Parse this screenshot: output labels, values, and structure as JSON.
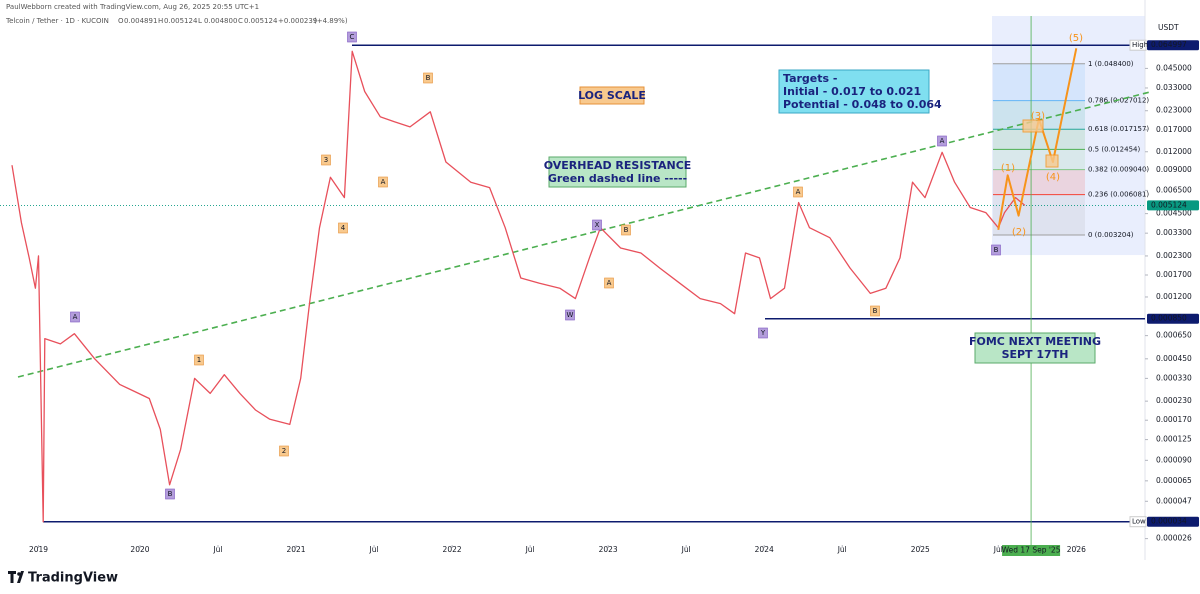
{
  "header": {
    "credit": "PaulWebborn created with TradingView.com, Aug 26, 2025 20:55 UTC+1",
    "symbol": "Telcoin / Tether · 1D · KUCOIN",
    "ohlc": [
      {
        "key": "O",
        "value": 0.004891,
        "label": "0.004891"
      },
      {
        "key": "H",
        "value": 0.005124,
        "label": "0.005124"
      },
      {
        "key": "L",
        "value": 0.0048,
        "label": "0.004800"
      },
      {
        "key": "C",
        "value": 0.005124,
        "label": "0.005124"
      }
    ],
    "change": {
      "value": 0.000239,
      "label": "+0.000239"
    },
    "change_pct": {
      "value": 4.89,
      "label": "(+4.89%)"
    }
  },
  "chart_data": {
    "type": "line",
    "log_scale": true,
    "currency": "USDT",
    "xlim": [
      2019.103,
      2026.44
    ],
    "ylim": [
      2.35e-05,
      0.1033
    ],
    "xticks": [
      {
        "value": 2019.35,
        "label": "2019"
      },
      2020,
      {
        "value": 2020.5,
        "label": "Jul"
      },
      2021,
      {
        "value": 2021.5,
        "label": "Jul"
      },
      2022,
      {
        "value": 2022.5,
        "label": "Jul"
      },
      2023,
      {
        "value": 2023.5,
        "label": "Jul"
      },
      2024,
      {
        "value": 2024.5,
        "label": "Jul"
      },
      2025,
      {
        "value": 2025.5,
        "label": "Jul"
      },
      2026
    ],
    "yticks": [
      {
        "value": 0.045,
        "label": "0.045000"
      },
      {
        "value": 0.033,
        "label": "0.033000"
      },
      {
        "value": 0.023,
        "label": "0.023000"
      },
      {
        "value": 0.017,
        "label": "0.017000"
      },
      {
        "value": 0.012,
        "label": "0.012000"
      },
      {
        "value": 0.009,
        "label": "0.009000"
      },
      {
        "value": 0.0065,
        "label": "0.006500"
      },
      {
        "value": 0.0045,
        "label": "0.004500"
      },
      {
        "value": 0.0033,
        "label": "0.003300"
      },
      {
        "value": 0.0023,
        "label": "0.002300"
      },
      {
        "value": 0.0017,
        "label": "0.001700"
      },
      {
        "value": 0.0012,
        "label": "0.001200"
      },
      {
        "value": 0.00065,
        "label": "0.000650"
      },
      {
        "value": 0.00045,
        "label": "0.000450"
      },
      {
        "value": 0.00033,
        "label": "0.000330"
      },
      {
        "value": 0.00023,
        "label": "0.000230"
      },
      {
        "value": 0.00017,
        "label": "0.000170"
      },
      {
        "value": 0.000125,
        "label": "0.000125"
      },
      {
        "value": 9e-05,
        "label": "0.000090"
      },
      {
        "value": 6.5e-05,
        "label": "0.000065"
      },
      {
        "value": 4.7e-05,
        "label": "0.000047"
      },
      {
        "value": 2.6e-05,
        "label": "0.000026"
      }
    ],
    "x": [
      2019.18,
      2019.24,
      2019.29,
      2019.33,
      2019.35,
      2019.38,
      2019.39,
      2019.49,
      2019.58,
      2019.71,
      2019.87,
      2020.06,
      2020.13,
      2020.19,
      2020.26,
      2020.35,
      2020.45,
      2020.54,
      2020.64,
      2020.74,
      2020.83,
      2020.96,
      2021.03,
      2021.09,
      2021.15,
      2021.22,
      2021.31,
      2021.36,
      2021.44,
      2021.54,
      2021.63,
      2021.73,
      2021.86,
      2021.96,
      2022.12,
      2022.24,
      2022.34,
      2022.44,
      2022.56,
      2022.69,
      2022.79,
      2022.88,
      2022.95,
      2023.08,
      2023.21,
      2023.33,
      2023.46,
      2023.59,
      2023.72,
      2023.81,
      2023.88,
      2023.97,
      2024.04,
      2024.13,
      2024.22,
      2024.29,
      2024.42,
      2024.55,
      2024.68,
      2024.78,
      2024.87,
      2024.95,
      2025.03,
      2025.14,
      2025.22,
      2025.32,
      2025.42,
      2025.5,
      2025.54,
      2025.61,
      2025.67
    ],
    "series": [
      {
        "color": "#e8505b",
        "values": [
          0.0097,
          0.0039,
          0.00223,
          0.00138,
          0.0023,
          3.4e-05,
          0.00062,
          0.00057,
          0.00067,
          0.00045,
          0.0003,
          0.00024,
          0.000147,
          6.1e-05,
          0.000107,
          0.00033,
          0.00026,
          0.00035,
          0.00026,
          0.0002,
          0.000173,
          0.000159,
          0.00033,
          0.00117,
          0.0036,
          0.008,
          0.0058,
          0.059,
          0.0312,
          0.0209,
          0.0193,
          0.0178,
          0.0226,
          0.0102,
          0.0074,
          0.0068,
          0.0036,
          0.00162,
          0.00149,
          0.00138,
          0.00117,
          0.00223,
          0.0036,
          0.00261,
          0.00241,
          0.0019,
          0.00149,
          0.00117,
          0.00108,
          0.00092,
          0.00241,
          0.00223,
          0.00117,
          0.00138,
          0.00537,
          0.0036,
          0.00307,
          0.0019,
          0.00127,
          0.00138,
          0.00223,
          0.0074,
          0.0058,
          0.0119,
          0.0074,
          0.00496,
          0.00457,
          0.0036,
          0.00457,
          0.0058,
          0.005124
        ]
      }
    ],
    "projection": {
      "color": "#f7931a",
      "x": [
        2025.5,
        2025.56,
        2025.63,
        2025.76,
        2025.85,
        2026.0
      ],
      "values": [
        0.00348,
        0.00826,
        0.00436,
        0.0202,
        0.0102,
        0.0619
      ]
    },
    "high": {
      "name": "High",
      "value": 0.064997,
      "label": "0.064997",
      "color": "#0d1b6e"
    },
    "low": {
      "name": "Low",
      "value": 3.4e-05,
      "label": "0.000034",
      "color": "#0d1b6e"
    },
    "support": {
      "value": 0.00085,
      "label": "0.000850",
      "color": "#0d1b6e"
    },
    "last": {
      "value": 0.005124,
      "label": "0.005124",
      "color": "#089981"
    },
    "fib": [
      {
        "value": 0.0484,
        "label": "1 (0.048400)",
        "color": "#9e9e9e"
      },
      {
        "value": 0.027012,
        "label": "0.786 (0.027012)",
        "color": "#64b5f6"
      },
      {
        "value": 0.017157,
        "label": "0.618 (0.017157)",
        "color": "#26a69a"
      },
      {
        "value": 0.012454,
        "label": "0.5 (0.012454)",
        "color": "#4caf50"
      },
      {
        "value": 0.00904,
        "label": "0.382 (0.009040)",
        "color": "#81c784"
      },
      {
        "value": 0.006081,
        "label": "0.236 (0.006081)",
        "color": "#f44336"
      },
      {
        "value": 0.003204,
        "label": "0 (0.003204)",
        "color": "#9e9e9e"
      }
    ],
    "marker": {
      "value": 2025.71,
      "label": "Wed 17 Sep '25",
      "color": "#4caf50"
    },
    "waves": [
      "(1)",
      "(2)",
      "(3)",
      "(4)",
      "(5)"
    ],
    "annotations": [
      "C",
      "B",
      "3",
      "A",
      "4",
      "A",
      "1",
      "2",
      "B",
      "X",
      "B",
      "A",
      "W",
      "Y",
      "A",
      "B",
      "A",
      "B"
    ],
    "notes": {
      "log": [
        "LOG SCALE"
      ],
      "targets": [
        "Targets -",
        "Initial - 0.017 to 0.021",
        "Potential - 0.048 to 0.064"
      ],
      "resistance": [
        "OVERHEAD RESISTANCE",
        "Green dashed line -----"
      ],
      "fomc": [
        "FOMC NEXT MEETING",
        "SEPT 17TH"
      ]
    }
  },
  "brand": "TradingView"
}
